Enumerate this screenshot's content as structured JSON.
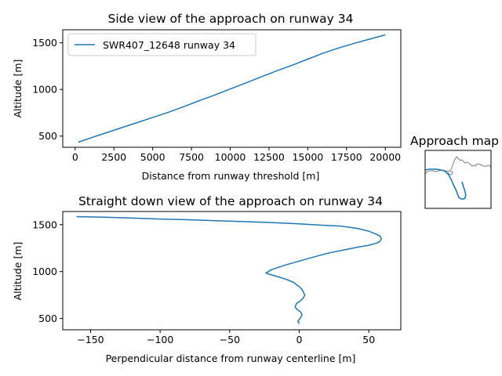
{
  "chart_data": [
    {
      "id": "side",
      "type": "line",
      "title": "Side view of the approach on runway 34",
      "xlabel": "Distance from runway threshold [m]",
      "ylabel": "Altitude [m]",
      "xlim": [
        -800,
        21000
      ],
      "ylim": [
        380,
        1640
      ],
      "xticks": [
        0,
        2500,
        5000,
        7500,
        10000,
        12500,
        15000,
        17500,
        20000
      ],
      "xtick_labels": [
        "0",
        "2500",
        "5000",
        "7500",
        "10000",
        "12500",
        "15000",
        "17500",
        "20000"
      ],
      "yticks": [
        500,
        1000,
        1500
      ],
      "ytick_labels": [
        "500",
        "1000",
        "1500"
      ],
      "legend": "upper-left",
      "series": [
        {
          "name": "SWR407_12648 runway 34",
          "color": "#1f77b4",
          "x": [
            200,
            1000,
            2000,
            3000,
            4000,
            5000,
            6000,
            7000,
            8000,
            9000,
            10000,
            11000,
            12000,
            13000,
            14000,
            15000,
            16000,
            17000,
            18000,
            19000,
            20000
          ],
          "y": [
            435,
            480,
            535,
            590,
            645,
            700,
            755,
            815,
            880,
            940,
            1005,
            1070,
            1135,
            1200,
            1260,
            1325,
            1390,
            1445,
            1495,
            1540,
            1585
          ]
        }
      ]
    },
    {
      "id": "top",
      "type": "line",
      "title": "Straight down view of the approach on runway 34",
      "xlabel": "Perpendicular distance from runway centerline [m]",
      "ylabel": "Altitude [m]",
      "xlim": [
        -170,
        73
      ],
      "ylim": [
        380,
        1640
      ],
      "xticks": [
        -150,
        -100,
        -50,
        0,
        50
      ],
      "xtick_labels": [
        "−150",
        "−100",
        "−50",
        "0",
        "50"
      ],
      "yticks": [
        500,
        1000,
        1500
      ],
      "ytick_labels": [
        "500",
        "1000",
        "1500"
      ],
      "series": [
        {
          "color": "#1f77b4",
          "x": [
            -160,
            -140,
            -120,
            -100,
            -80,
            -60,
            -40,
            -20,
            0,
            15,
            30,
            42,
            50,
            55,
            58,
            59,
            58,
            55,
            50,
            42,
            32,
            22,
            14,
            8,
            2,
            -4,
            -10,
            -15,
            -20,
            -24,
            -20,
            -14,
            -8,
            -4,
            -2,
            0,
            2,
            3,
            4,
            3,
            1,
            -2,
            -3,
            -1,
            1,
            2,
            1,
            0,
            -1,
            0
          ],
          "y": [
            1585,
            1580,
            1570,
            1560,
            1552,
            1542,
            1532,
            1522,
            1508,
            1495,
            1485,
            1460,
            1430,
            1400,
            1380,
            1350,
            1320,
            1300,
            1280,
            1260,
            1230,
            1200,
            1170,
            1145,
            1120,
            1095,
            1070,
            1045,
            1020,
            985,
            965,
            940,
            910,
            885,
            860,
            840,
            810,
            780,
            750,
            720,
            690,
            660,
            620,
            590,
            570,
            540,
            510,
            490,
            470,
            445
          ]
        }
      ]
    },
    {
      "id": "map",
      "type": "line",
      "title": "Approach map",
      "series": [
        {
          "color": "#808080",
          "x": [
            0,
            3,
            6,
            10,
            14,
            18,
            22,
            27,
            31,
            34,
            36,
            38,
            41,
            44,
            46,
            48,
            50,
            52,
            55,
            58,
            61,
            64,
            66,
            68,
            72,
            76,
            80,
            84,
            86
          ],
          "y": [
            30,
            27,
            26,
            26,
            27,
            26,
            25,
            26,
            27,
            24,
            19,
            13,
            8,
            11,
            13,
            12,
            14,
            16,
            15,
            17,
            20,
            19,
            20,
            17,
            18,
            20,
            20,
            19,
            22
          ]
        },
        {
          "color": "#808080",
          "x": [
            29,
            31,
            33,
            35,
            36,
            35,
            33
          ],
          "y": [
            28,
            30,
            31,
            30,
            28,
            27,
            27
          ]
        },
        {
          "color": "#1f77b4",
          "x": [
            48,
            50,
            52,
            53,
            52,
            50,
            47,
            44,
            42,
            40,
            37,
            34,
            30,
            25,
            15,
            5,
            0
          ],
          "y": [
            40,
            46,
            52,
            57,
            61,
            62,
            62,
            60,
            55,
            50,
            44,
            37,
            30,
            26,
            24,
            24,
            25
          ]
        }
      ]
    }
  ]
}
